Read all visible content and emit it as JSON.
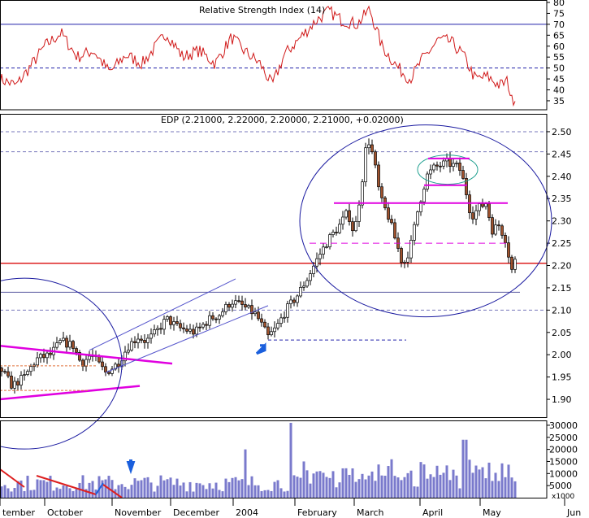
{
  "chart_data": {
    "type": "candlestick",
    "symbol": "EDP",
    "indicator_header": "Relative Strength Index (14)",
    "price_header": "EDP (2.21000, 2.22000, 2.20000, 2.21000, +0.02000)",
    "rsi_panel": {
      "ylim": [
        32,
        80
      ],
      "ticks": [
        35,
        40,
        45,
        50,
        55,
        60,
        65,
        70,
        75,
        80
      ],
      "levels": [
        70,
        50
      ],
      "series_color": "#d01818"
    },
    "price_panel": {
      "ylim": [
        1.86,
        2.54
      ],
      "ticks": [
        "1.90",
        "1.95",
        "2.00",
        "2.05",
        "2.10",
        "2.15",
        "2.20",
        "2.25",
        "2.30",
        "2.35",
        "2.40",
        "2.45",
        "2.50"
      ],
      "horizontal_lines": [
        {
          "value": 2.205,
          "color": "#dd1f1f",
          "style": "solid"
        },
        {
          "value": 2.14,
          "color": "#5a5aa0",
          "style": "solid"
        },
        {
          "value": 2.033,
          "color": "#2222aa",
          "style": "dashed"
        },
        {
          "value": 2.5,
          "color": "#7777bb",
          "style": "dashed"
        },
        {
          "value": 2.455,
          "color": "#7777bb",
          "style": "dashed"
        },
        {
          "value": 2.1,
          "color": "#7777bb",
          "style": "dashed"
        }
      ],
      "up_color": "#ffffff",
      "down_color": "#a0522d",
      "annotation_color": "#e000e0",
      "channel_color": "#5555cc"
    },
    "volume_panel": {
      "ylim": [
        0,
        32000
      ],
      "ticks": [
        "5000",
        "10000",
        "15000",
        "20000",
        "25000",
        "30000"
      ],
      "unit_label": "x1000",
      "bar_color": "#7a7acc"
    },
    "x_axis": {
      "labels": [
        "September",
        "October",
        "November",
        "December",
        "2004",
        "February",
        "March",
        "April",
        "May",
        "Jun"
      ]
    },
    "anchors": [
      {
        "t": 0,
        "p": 1.97
      },
      {
        "t": 15,
        "p": 1.93
      },
      {
        "t": 30,
        "p": 1.95
      },
      {
        "t": 45,
        "p": 1.99
      },
      {
        "t": 62,
        "p": 2.0
      },
      {
        "t": 75,
        "p": 2.03
      },
      {
        "t": 90,
        "p": 2.02
      },
      {
        "t": 100,
        "p": 1.98
      },
      {
        "t": 112,
        "p": 2.0
      },
      {
        "t": 130,
        "p": 1.96
      },
      {
        "t": 145,
        "p": 1.98
      },
      {
        "t": 158,
        "p": 2.02
      },
      {
        "t": 170,
        "p": 2.04
      },
      {
        "t": 180,
        "p": 2.03
      },
      {
        "t": 192,
        "p": 2.05
      },
      {
        "t": 205,
        "p": 2.08
      },
      {
        "t": 220,
        "p": 2.06
      },
      {
        "t": 240,
        "p": 2.05
      },
      {
        "t": 258,
        "p": 2.08
      },
      {
        "t": 270,
        "p": 2.09
      },
      {
        "t": 285,
        "p": 2.12
      },
      {
        "t": 298,
        "p": 2.11
      },
      {
        "t": 315,
        "p": 2.09
      },
      {
        "t": 330,
        "p": 2.04
      },
      {
        "t": 340,
        "p": 2.06
      },
      {
        "t": 352,
        "p": 2.1
      },
      {
        "t": 365,
        "p": 2.13
      },
      {
        "t": 378,
        "p": 2.17
      },
      {
        "t": 392,
        "p": 2.22
      },
      {
        "t": 405,
        "p": 2.26
      },
      {
        "t": 418,
        "p": 2.29
      },
      {
        "t": 428,
        "p": 2.32
      },
      {
        "t": 436,
        "p": 2.27
      },
      {
        "t": 445,
        "p": 2.38
      },
      {
        "t": 452,
        "p": 2.49
      },
      {
        "t": 460,
        "p": 2.44
      },
      {
        "t": 468,
        "p": 2.35
      },
      {
        "t": 478,
        "p": 2.31
      },
      {
        "t": 488,
        "p": 2.25
      },
      {
        "t": 496,
        "p": 2.2
      },
      {
        "t": 505,
        "p": 2.24
      },
      {
        "t": 515,
        "p": 2.33
      },
      {
        "t": 525,
        "p": 2.4
      },
      {
        "t": 535,
        "p": 2.42
      },
      {
        "t": 550,
        "p": 2.43
      },
      {
        "t": 565,
        "p": 2.42
      },
      {
        "t": 572,
        "p": 2.38
      },
      {
        "t": 580,
        "p": 2.31
      },
      {
        "t": 590,
        "p": 2.33
      },
      {
        "t": 598,
        "p": 2.34
      },
      {
        "t": 606,
        "p": 2.28
      },
      {
        "t": 614,
        "p": 2.29
      },
      {
        "t": 622,
        "p": 2.26
      },
      {
        "t": 630,
        "p": 2.19
      },
      {
        "t": 634,
        "p": 2.21
      }
    ],
    "rsi_anchors": [
      {
        "t": 0,
        "v": 45
      },
      {
        "t": 20,
        "v": 42
      },
      {
        "t": 40,
        "v": 52
      },
      {
        "t": 55,
        "v": 60
      },
      {
        "t": 75,
        "v": 66
      },
      {
        "t": 95,
        "v": 55
      },
      {
        "t": 115,
        "v": 58
      },
      {
        "t": 135,
        "v": 48
      },
      {
        "t": 155,
        "v": 56
      },
      {
        "t": 175,
        "v": 52
      },
      {
        "t": 205,
        "v": 66
      },
      {
        "t": 225,
        "v": 55
      },
      {
        "t": 245,
        "v": 58
      },
      {
        "t": 265,
        "v": 52
      },
      {
        "t": 285,
        "v": 64
      },
      {
        "t": 300,
        "v": 58
      },
      {
        "t": 320,
        "v": 52
      },
      {
        "t": 335,
        "v": 42
      },
      {
        "t": 350,
        "v": 56
      },
      {
        "t": 370,
        "v": 64
      },
      {
        "t": 390,
        "v": 72
      },
      {
        "t": 405,
        "v": 76
      },
      {
        "t": 420,
        "v": 72
      },
      {
        "t": 440,
        "v": 70
      },
      {
        "t": 455,
        "v": 77
      },
      {
        "t": 470,
        "v": 60
      },
      {
        "t": 490,
        "v": 50
      },
      {
        "t": 505,
        "v": 45
      },
      {
        "t": 520,
        "v": 54
      },
      {
        "t": 540,
        "v": 63
      },
      {
        "t": 555,
        "v": 62
      },
      {
        "t": 570,
        "v": 56
      },
      {
        "t": 585,
        "v": 45
      },
      {
        "t": 600,
        "v": 46
      },
      {
        "t": 615,
        "v": 42
      },
      {
        "t": 625,
        "v": 44
      },
      {
        "t": 630,
        "v": 35
      },
      {
        "t": 634,
        "v": 37
      }
    ]
  }
}
